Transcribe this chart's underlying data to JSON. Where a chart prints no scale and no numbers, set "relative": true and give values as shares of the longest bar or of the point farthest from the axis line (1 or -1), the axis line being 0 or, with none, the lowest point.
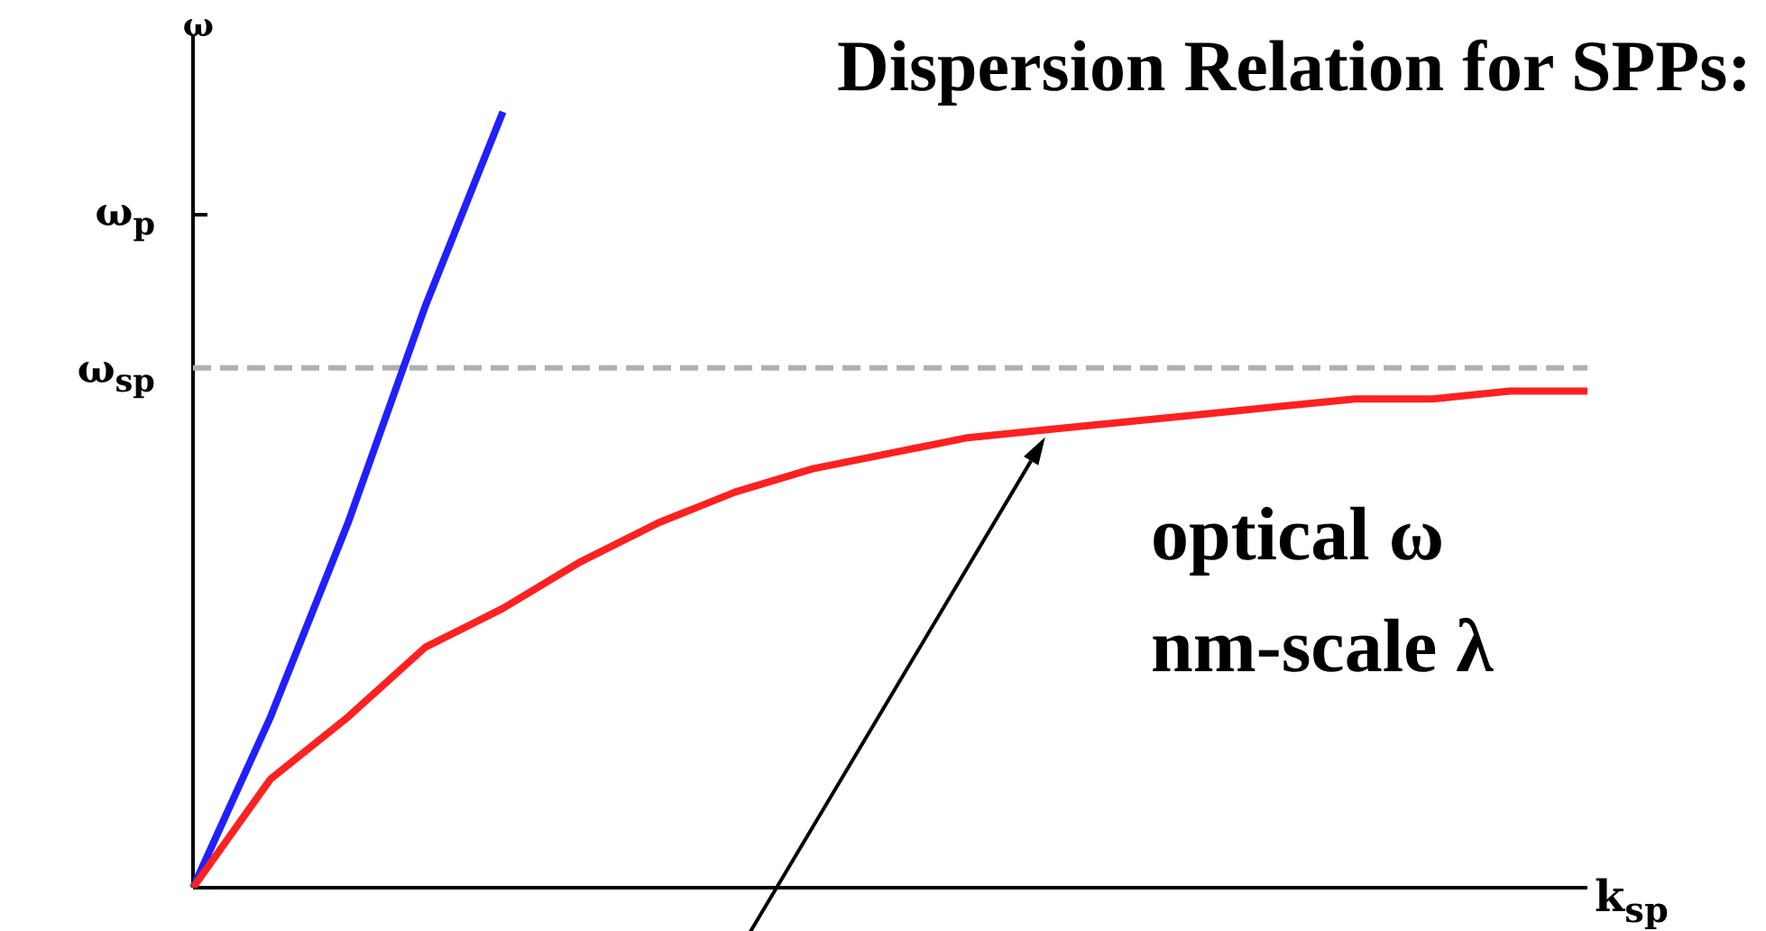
{
  "chart_data": {
    "type": "line",
    "title": "Dispersion Relation for SPPs:",
    "xlabel": "k$_{sp}$",
    "ylabel": "ω",
    "relative": true,
    "categories": [
      null,
      null,
      null,
      null,
      null,
      null,
      null,
      null,
      null,
      null,
      null,
      null,
      null,
      null,
      null,
      null,
      null,
      null,
      null
    ],
    "series": [
      {
        "color": "#2020ff",
        "values": [
          0,
          0.22,
          0.47,
          0.75,
          1,
          null,
          null,
          null,
          null,
          null,
          null,
          null,
          null,
          null,
          null,
          null,
          null,
          null,
          null
        ]
      },
      {
        "color": "#ff2020",
        "values": [
          0,
          0.14,
          0.22,
          0.31,
          0.36,
          0.42,
          0.47,
          0.51,
          0.54,
          0.56,
          0.58,
          0.59,
          0.6,
          0.61,
          0.62,
          0.63,
          0.63,
          0.64,
          0.64
        ]
      }
    ],
    "ref_lines": [
      {
        "axis": "y",
        "value": 0.67,
        "label": "ω$_{sp}$",
        "color": "#b0b0b0",
        "line_style": "dashed"
      }
    ],
    "annotations": [
      "ω$_{p}$",
      "optical ω",
      "nm-scale λ"
    ],
    "marker": "none",
    "line_style": "solid",
    "grid": false,
    "legend": false
  }
}
